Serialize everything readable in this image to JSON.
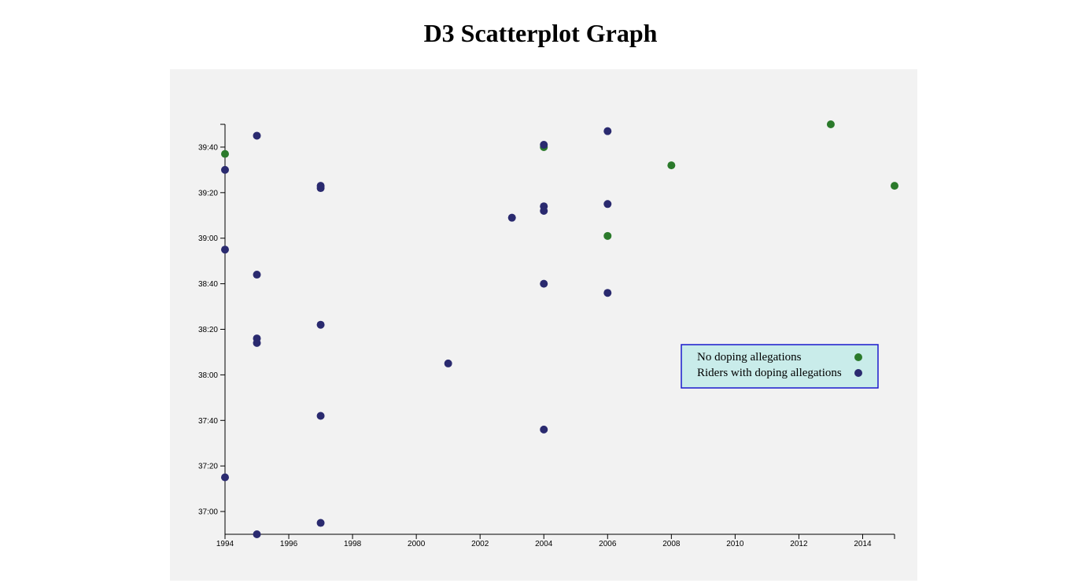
{
  "title": "D3 Scatterplot Graph",
  "chart_data": {
    "type": "scatter",
    "title": "D3 Scatterplot Graph",
    "xlabel": "",
    "ylabel": "",
    "xlim": [
      1994,
      2015
    ],
    "ylim": [
      "36:50",
      "39:50"
    ],
    "x_ticks": [
      "1994",
      "1996",
      "1998",
      "2000",
      "2002",
      "2004",
      "2006",
      "2008",
      "2010",
      "2012",
      "2014"
    ],
    "y_ticks": [
      "37:00",
      "37:20",
      "37:40",
      "38:00",
      "38:20",
      "38:40",
      "39:00",
      "39:20",
      "39:40"
    ],
    "legend_position": "center-right",
    "colors": {
      "clean": "#2b7a2b",
      "doping": "#2a2a6f",
      "legend_bg": "#c9ecea",
      "legend_border": "#1a1acc",
      "panel_bg": "#f2f2f2"
    },
    "series": [
      {
        "name": "No doping allegations",
        "color": "#2b7a2b",
        "points": [
          {
            "x": 1994,
            "y": "39:37"
          },
          {
            "x": 2004,
            "y": "39:40"
          },
          {
            "x": 2006,
            "y": "39:01"
          },
          {
            "x": 2008,
            "y": "39:32"
          },
          {
            "x": 2013,
            "y": "39:50"
          },
          {
            "x": 2015,
            "y": "39:23"
          }
        ]
      },
      {
        "name": "Riders with doping allegations",
        "color": "#2a2a6f",
        "points": [
          {
            "x": 1994,
            "y": "39:30"
          },
          {
            "x": 1994,
            "y": "38:55"
          },
          {
            "x": 1994,
            "y": "37:15"
          },
          {
            "x": 1995,
            "y": "39:45"
          },
          {
            "x": 1995,
            "y": "38:44"
          },
          {
            "x": 1995,
            "y": "38:16"
          },
          {
            "x": 1995,
            "y": "38:14"
          },
          {
            "x": 1995,
            "y": "36:50"
          },
          {
            "x": 1997,
            "y": "39:23"
          },
          {
            "x": 1997,
            "y": "39:22"
          },
          {
            "x": 1997,
            "y": "38:22"
          },
          {
            "x": 1997,
            "y": "37:42"
          },
          {
            "x": 1997,
            "y": "36:55"
          },
          {
            "x": 2001,
            "y": "38:05"
          },
          {
            "x": 2003,
            "y": "39:09"
          },
          {
            "x": 2004,
            "y": "39:41"
          },
          {
            "x": 2004,
            "y": "39:14"
          },
          {
            "x": 2004,
            "y": "39:12"
          },
          {
            "x": 2004,
            "y": "38:40"
          },
          {
            "x": 2004,
            "y": "37:36"
          },
          {
            "x": 2006,
            "y": "39:47"
          },
          {
            "x": 2006,
            "y": "39:15"
          },
          {
            "x": 2006,
            "y": "38:36"
          }
        ]
      }
    ]
  }
}
